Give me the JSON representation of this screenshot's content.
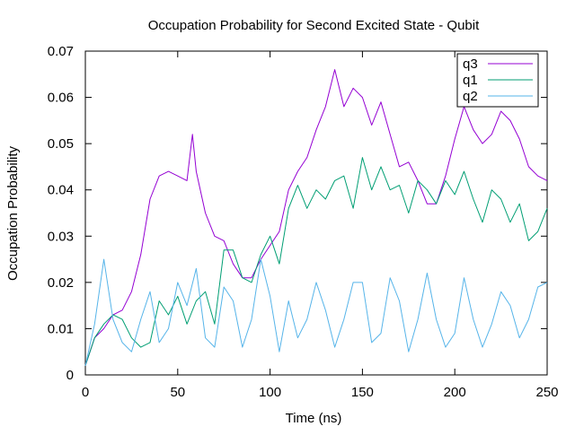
{
  "chart_data": {
    "type": "line",
    "title": "Occupation Probability for Second Excited State - Qubit",
    "xlabel": "Time (ns)",
    "ylabel": "Occupation Probability",
    "xlim": [
      0,
      250
    ],
    "ylim": [
      0,
      0.07
    ],
    "xticks": [
      0,
      50,
      100,
      150,
      200,
      250
    ],
    "yticks": [
      0,
      0.01,
      0.02,
      0.03,
      0.04,
      0.05,
      0.06,
      0.07
    ],
    "ytick_labels": [
      "0",
      "0.01",
      "0.02",
      "0.03",
      "0.04",
      "0.05",
      "0.06",
      "0.07"
    ],
    "grid": false,
    "legend_position": "top-right",
    "series": [
      {
        "name": "q3",
        "color": "#9400d3",
        "x": [
          0,
          5,
          10,
          15,
          20,
          25,
          30,
          35,
          40,
          45,
          50,
          55,
          58,
          60,
          65,
          70,
          75,
          80,
          85,
          90,
          95,
          100,
          105,
          110,
          115,
          120,
          125,
          130,
          135,
          140,
          145,
          150,
          155,
          160,
          165,
          170,
          175,
          180,
          185,
          190,
          195,
          200,
          205,
          210,
          215,
          220,
          225,
          230,
          235,
          240,
          245,
          250
        ],
        "y": [
          0.002,
          0.008,
          0.01,
          0.013,
          0.014,
          0.018,
          0.026,
          0.038,
          0.043,
          0.044,
          0.043,
          0.042,
          0.052,
          0.044,
          0.035,
          0.03,
          0.029,
          0.024,
          0.021,
          0.021,
          0.025,
          0.028,
          0.031,
          0.04,
          0.044,
          0.047,
          0.053,
          0.058,
          0.066,
          0.058,
          0.062,
          0.06,
          0.054,
          0.059,
          0.052,
          0.045,
          0.046,
          0.042,
          0.037,
          0.037,
          0.043,
          0.051,
          0.058,
          0.053,
          0.05,
          0.052,
          0.057,
          0.055,
          0.051,
          0.045,
          0.043,
          0.042
        ]
      },
      {
        "name": "q1",
        "color": "#009e73",
        "x": [
          0,
          5,
          10,
          15,
          20,
          25,
          30,
          35,
          40,
          45,
          50,
          55,
          60,
          65,
          70,
          75,
          80,
          85,
          90,
          95,
          100,
          105,
          110,
          115,
          120,
          125,
          130,
          135,
          140,
          145,
          150,
          155,
          160,
          165,
          170,
          175,
          180,
          185,
          190,
          195,
          200,
          205,
          210,
          215,
          220,
          225,
          230,
          235,
          240,
          245,
          250
        ],
        "y": [
          0.002,
          0.008,
          0.011,
          0.013,
          0.012,
          0.008,
          0.006,
          0.007,
          0.016,
          0.013,
          0.017,
          0.011,
          0.016,
          0.018,
          0.011,
          0.027,
          0.027,
          0.021,
          0.02,
          0.026,
          0.03,
          0.024,
          0.036,
          0.041,
          0.036,
          0.04,
          0.038,
          0.042,
          0.043,
          0.036,
          0.047,
          0.04,
          0.045,
          0.04,
          0.041,
          0.035,
          0.042,
          0.04,
          0.037,
          0.042,
          0.039,
          0.044,
          0.038,
          0.033,
          0.04,
          0.038,
          0.033,
          0.037,
          0.029,
          0.031,
          0.036
        ]
      },
      {
        "name": "q2",
        "color": "#56b4e9",
        "x": [
          0,
          5,
          10,
          15,
          20,
          25,
          30,
          35,
          40,
          45,
          50,
          55,
          60,
          65,
          70,
          75,
          80,
          85,
          90,
          95,
          100,
          105,
          110,
          115,
          120,
          125,
          130,
          135,
          140,
          145,
          150,
          155,
          160,
          165,
          170,
          175,
          180,
          185,
          190,
          195,
          200,
          205,
          210,
          215,
          220,
          225,
          230,
          235,
          240,
          245,
          250
        ],
        "y": [
          0.002,
          0.011,
          0.025,
          0.012,
          0.007,
          0.005,
          0.012,
          0.018,
          0.007,
          0.01,
          0.02,
          0.015,
          0.023,
          0.008,
          0.006,
          0.019,
          0.016,
          0.006,
          0.012,
          0.025,
          0.017,
          0.005,
          0.016,
          0.008,
          0.012,
          0.02,
          0.014,
          0.006,
          0.012,
          0.02,
          0.02,
          0.007,
          0.009,
          0.021,
          0.016,
          0.005,
          0.012,
          0.022,
          0.012,
          0.006,
          0.009,
          0.021,
          0.012,
          0.006,
          0.011,
          0.018,
          0.015,
          0.008,
          0.012,
          0.019,
          0.02
        ]
      }
    ]
  }
}
